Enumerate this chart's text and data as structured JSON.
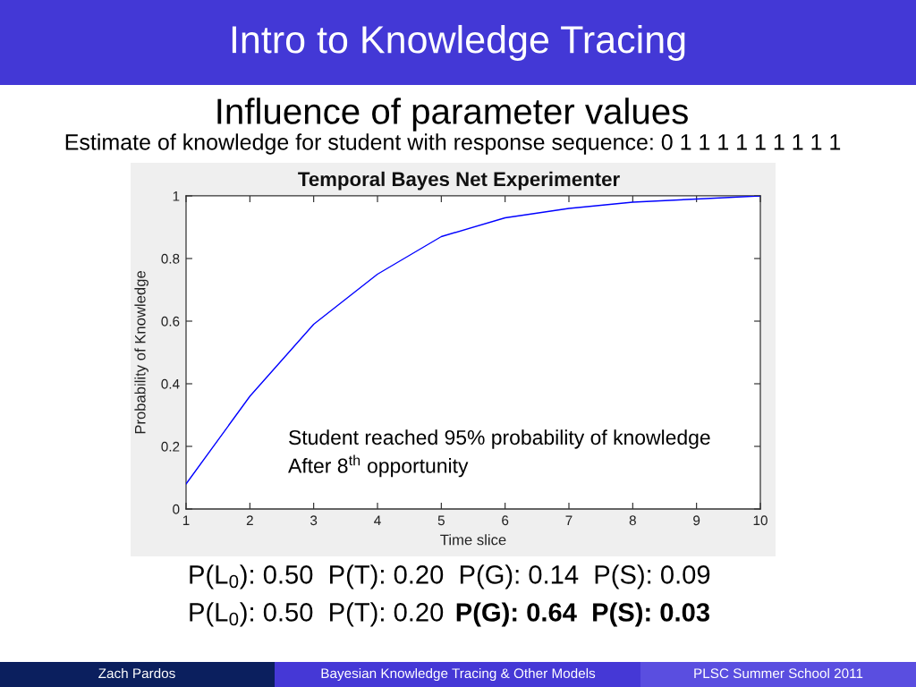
{
  "chart_data": {
    "type": "line",
    "title": "Temporal Bayes Net Experimenter",
    "xlabel": "Time slice",
    "ylabel": "Probability of Knowledge",
    "x": [
      1,
      2,
      3,
      4,
      5,
      6,
      7,
      8,
      9,
      10
    ],
    "series": [
      {
        "color": "#0000ff",
        "values": [
          0.08,
          0.36,
          0.59,
          0.75,
          0.87,
          0.93,
          0.96,
          0.98,
          0.99,
          1.0
        ]
      }
    ],
    "xlim": [
      1,
      10
    ],
    "ylim": [
      0,
      1
    ],
    "xticks": [
      1,
      2,
      3,
      4,
      5,
      6,
      7,
      8,
      9,
      10
    ],
    "yticks": [
      0,
      0.2,
      0.4,
      0.6,
      0.8,
      1
    ],
    "annotations": [
      "Intro to Knowledge Tracing",
      "Influence of parameter values",
      "Estimate of knowledge for student with response sequence: 0 1 1 1 1 1 1 1 1 1",
      "Student reached 95% probability of knowledge",
      "After 8$^{th}$ opportunity",
      "P(L$_{0}$): 0.50  P(T): 0.20  P(G): 0.14  P(S): 0.09",
      "P(L$_{0}$): 0.50  P(T): 0.20",
      "P(G): 0.64  P(S): 0.03",
      "Zach Pardos",
      "Bayesian Knowledge Tracing & Other Models",
      "PLSC Summer School 2011"
    ]
  }
}
